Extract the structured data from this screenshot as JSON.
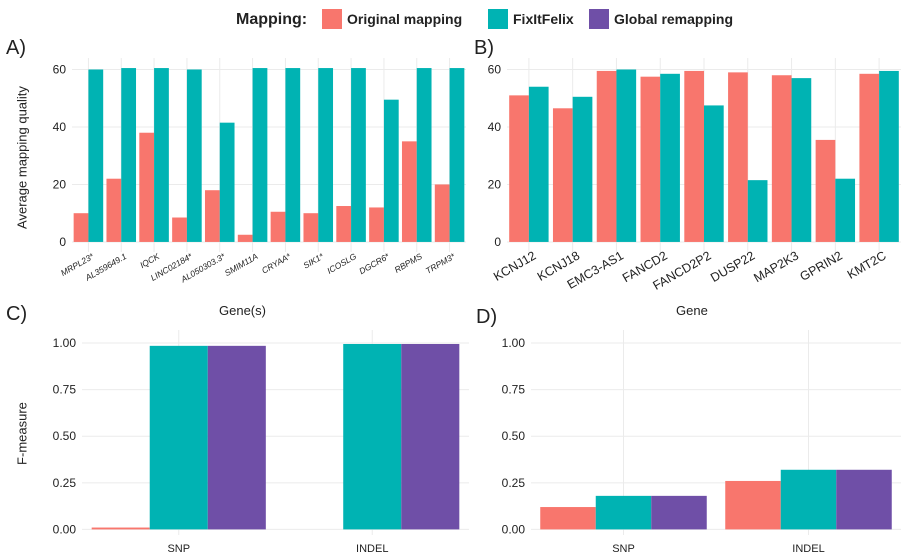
{
  "legend": {
    "title": "Mapping:",
    "items": [
      {
        "label": "Original mapping",
        "color": "#F8766D"
      },
      {
        "label": "FixItFelix",
        "color": "#00B3B3"
      },
      {
        "label": "Global remapping",
        "color": "#6F4FA7"
      }
    ]
  },
  "panels": {
    "a": {
      "letter": "A)",
      "xlabel": "Gene(s)",
      "ylabel": "Average mapping quality"
    },
    "b": {
      "letter": "B)",
      "xlabel": "Gene",
      "ylabel": ""
    },
    "c": {
      "letter": "C)",
      "xlabel": "",
      "ylabel": "F-measure"
    },
    "d": {
      "letter": "D)",
      "xlabel": "",
      "ylabel": ""
    }
  },
  "chart_data": [
    {
      "panel": "A",
      "type": "bar",
      "xlabel": "Gene(s)",
      "ylabel": "Average mapping quality",
      "ylim": [
        -3.5,
        64
      ],
      "yticks": [
        0,
        20,
        40,
        60
      ],
      "grid": true,
      "categories": [
        "MRPL23*",
        "AL359649.1",
        "IQCK",
        "LINC02184*",
        "AL050303.3*",
        "SMIM11A",
        "CRYAA*",
        "SIK1*",
        "ICOSLG",
        "DGCR6*",
        "RBPMS",
        "TRPM3*"
      ],
      "series": [
        {
          "name": "Original mapping",
          "values": [
            10,
            22,
            38,
            8.5,
            18,
            2.5,
            10.5,
            10,
            12.5,
            12,
            35,
            20
          ]
        },
        {
          "name": "FixItFelix",
          "values": [
            60,
            60.5,
            60.5,
            60,
            41.5,
            60.5,
            60.5,
            60.5,
            60.5,
            49.5,
            60.5,
            60.5
          ]
        }
      ]
    },
    {
      "panel": "B",
      "type": "bar",
      "xlabel": "Gene",
      "ylabel": "",
      "ylim": [
        -3.5,
        64
      ],
      "yticks": [
        0,
        20,
        40,
        60
      ],
      "grid": true,
      "categories": [
        "KCNJ12",
        "KCNJ18",
        "EMC3-AS1",
        "FANCD2",
        "FANCD2P2",
        "DUSP22",
        "MAP2K3",
        "GPRIN2",
        "KMT2C"
      ],
      "series": [
        {
          "name": "Original mapping",
          "values": [
            51,
            46.5,
            59.5,
            57.5,
            59.5,
            59,
            58,
            35.5,
            58.5
          ]
        },
        {
          "name": "FixItFelix",
          "values": [
            54,
            50.5,
            60,
            58.5,
            47.5,
            21.5,
            57,
            22,
            59.5
          ]
        }
      ]
    },
    {
      "panel": "C",
      "type": "bar",
      "xlabel": "",
      "ylabel": "F-measure",
      "ylim": [
        -0.03,
        1.07
      ],
      "yticks": [
        0.0,
        0.25,
        0.5,
        0.75,
        1.0
      ],
      "grid": true,
      "categories": [
        "SNP",
        "INDEL"
      ],
      "series": [
        {
          "name": "Original mapping",
          "values": [
            0.01,
            0
          ]
        },
        {
          "name": "FixItFelix",
          "values": [
            0.985,
            0.995
          ]
        },
        {
          "name": "Global remapping",
          "values": [
            0.985,
            0.995
          ]
        }
      ]
    },
    {
      "panel": "D",
      "type": "bar",
      "xlabel": "",
      "ylabel": "",
      "ylim": [
        -0.03,
        1.07
      ],
      "yticks": [
        0.0,
        0.25,
        0.5,
        0.75,
        1.0
      ],
      "grid": true,
      "categories": [
        "SNP",
        "INDEL"
      ],
      "series": [
        {
          "name": "Original mapping",
          "values": [
            0.12,
            0.26
          ]
        },
        {
          "name": "FixItFelix",
          "values": [
            0.18,
            0.32
          ]
        },
        {
          "name": "Global remapping",
          "values": [
            0.18,
            0.32
          ]
        }
      ]
    }
  ]
}
